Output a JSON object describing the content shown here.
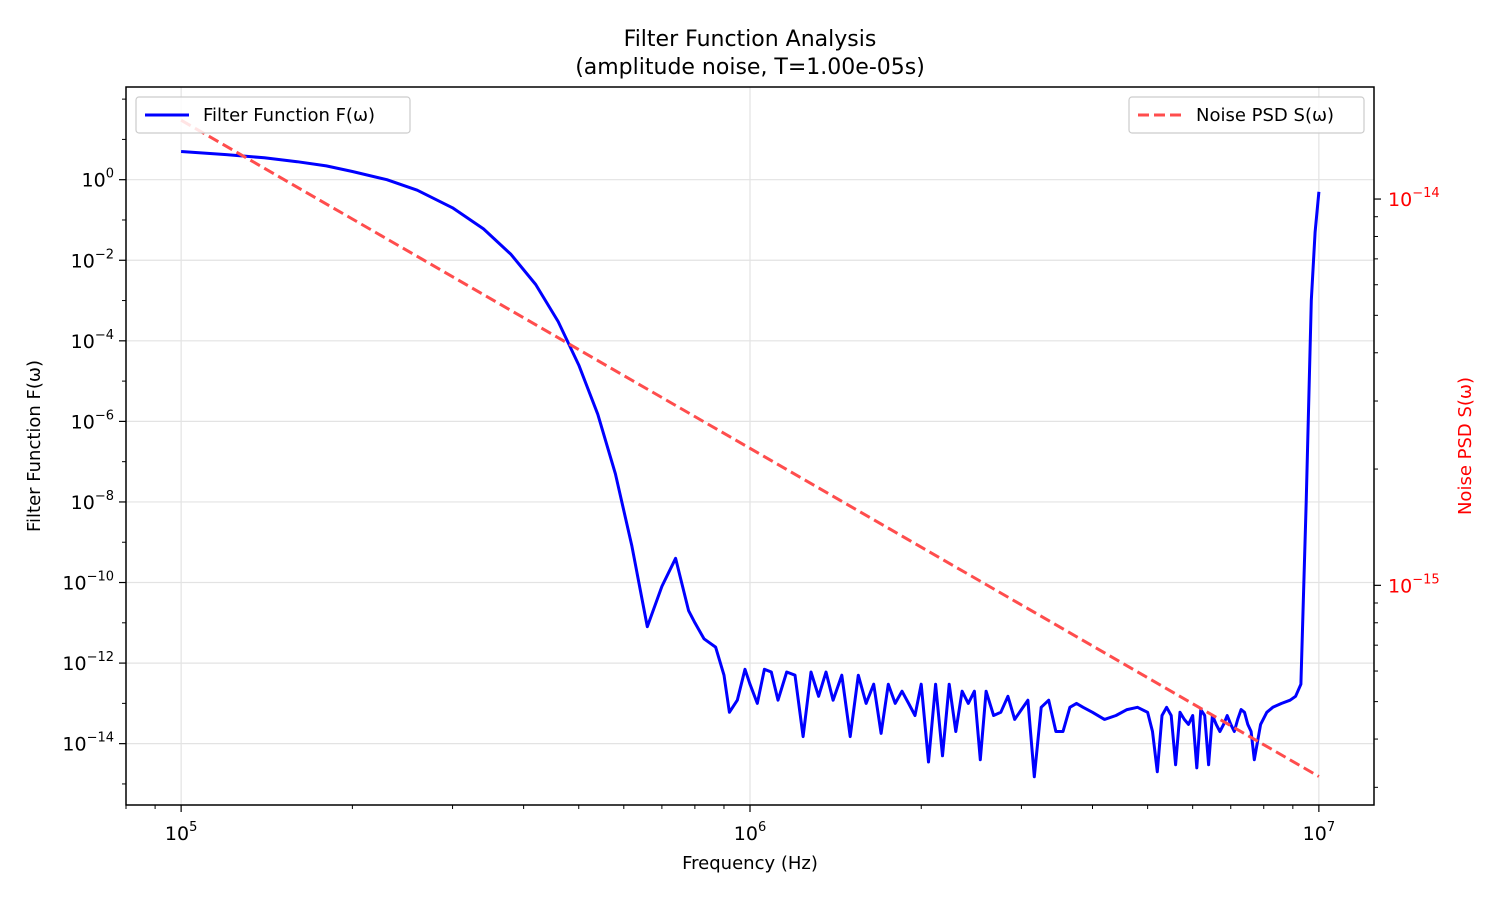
{
  "chart_data": {
    "type": "line",
    "title": "Filter Function Analysis",
    "subtitle": "(amplitude noise, T=1.00e-05s)",
    "xlabel": "Frequency (Hz)",
    "ylabel": "Filter Function F(ω)",
    "y2label": "Noise PSD S(ω)",
    "x_scale": "log",
    "y_scale": "log",
    "y2_scale": "log",
    "xlim": [
      80000,
      12500000
    ],
    "ylim": [
      3e-16,
      200
    ],
    "y2lim": [
      2.7e-16,
      1.95e-14
    ],
    "grid": true,
    "x_ticks": [
      {
        "base": "10",
        "exp": "5",
        "value": 100000
      },
      {
        "base": "10",
        "exp": "6",
        "value": 1000000
      },
      {
        "base": "10",
        "exp": "7",
        "value": 10000000
      }
    ],
    "y_ticks": [
      {
        "base": "10",
        "exp": "0",
        "value": 1
      },
      {
        "base": "10",
        "exp": "−2",
        "value": 0.01
      },
      {
        "base": "10",
        "exp": "−4",
        "value": 0.0001
      },
      {
        "base": "10",
        "exp": "−6",
        "value": 1e-06
      },
      {
        "base": "10",
        "exp": "−8",
        "value": 1e-08
      },
      {
        "base": "10",
        "exp": "−10",
        "value": 1e-10
      },
      {
        "base": "10",
        "exp": "−12",
        "value": 1e-12
      },
      {
        "base": "10",
        "exp": "−14",
        "value": 1e-14
      }
    ],
    "y2_ticks": [
      {
        "base": "10",
        "exp": "−14",
        "value": 1e-14
      },
      {
        "base": "10",
        "exp": "−15",
        "value": 1e-15
      }
    ],
    "legend": [
      {
        "label": "Filter Function F(ω)",
        "placement": "upper-left"
      },
      {
        "label": "Noise PSD S(ω)",
        "placement": "upper-right"
      }
    ],
    "series": [
      {
        "name": "Filter Function F(ω)",
        "color": "#0000ff",
        "style": "solid",
        "axis": "left",
        "x": [
          100000,
          120000,
          140000,
          160000,
          180000,
          200000,
          230000,
          260000,
          300000,
          340000,
          380000,
          420000,
          460000,
          500000,
          540000,
          580000,
          620000,
          660000,
          700000,
          740000,
          780000,
          800000,
          830000,
          870000,
          900000,
          920000,
          950000,
          980000,
          1000000,
          1030000,
          1060000,
          1090000,
          1120000,
          1160000,
          1200000,
          1240000,
          1280000,
          1320000,
          1360000,
          1400000,
          1450000,
          1500000,
          1550000,
          1600000,
          1650000,
          1700000,
          1750000,
          1800000,
          1850000,
          1900000,
          1950000,
          2000000,
          2060000,
          2120000,
          2180000,
          2240000,
          2300000,
          2360000,
          2420000,
          2480000,
          2540000,
          2600000,
          2680000,
          2760000,
          2840000,
          2920000,
          3000000,
          3080000,
          3160000,
          3250000,
          3350000,
          3450000,
          3550000,
          3650000,
          3750000,
          3850000,
          4000000,
          4200000,
          4400000,
          4600000,
          4800000,
          5000000,
          5100000,
          5200000,
          5300000,
          5400000,
          5500000,
          5600000,
          5700000,
          5800000,
          5900000,
          6000000,
          6100000,
          6200000,
          6300000,
          6400000,
          6500000,
          6600000,
          6700000,
          6800000,
          6900000,
          7000000,
          7100000,
          7200000,
          7300000,
          7400000,
          7500000,
          7600000,
          7700000,
          7900000,
          8100000,
          8300000,
          8600000,
          8900000,
          9100000,
          9300000,
          9500000,
          9700000,
          9850000,
          10000000
        ],
        "values": [
          5,
          4.2,
          3.5,
          2.8,
          2.2,
          1.6,
          1.0,
          0.55,
          0.2,
          0.06,
          0.014,
          0.0025,
          0.0003,
          2.5e-05,
          1.5e-06,
          5e-08,
          8e-10,
          8e-12,
          8e-11,
          4e-10,
          2e-11,
          1e-11,
          4e-12,
          2.5e-12,
          5e-13,
          6e-14,
          1.2e-13,
          7e-13,
          3e-13,
          1e-13,
          7e-13,
          6e-13,
          1.2e-13,
          6e-13,
          5e-13,
          1.5e-14,
          6e-13,
          1.5e-13,
          6e-13,
          1.2e-13,
          5e-13,
          1.5e-14,
          5e-13,
          1e-13,
          3e-13,
          1.8e-14,
          3e-13,
          1e-13,
          2e-13,
          1e-13,
          5e-14,
          3e-13,
          3.5e-15,
          3e-13,
          5e-15,
          3e-13,
          2e-14,
          2e-13,
          1e-13,
          2e-13,
          4e-15,
          2e-13,
          5e-14,
          6e-14,
          1.5e-13,
          4e-14,
          7e-14,
          1.2e-13,
          1.5e-15,
          8e-14,
          1.2e-13,
          2e-14,
          2e-14,
          8e-14,
          1e-13,
          8e-14,
          6e-14,
          4e-14,
          5e-14,
          7e-14,
          8e-14,
          6e-14,
          2e-14,
          2e-15,
          5e-14,
          8e-14,
          5e-14,
          3e-15,
          6e-14,
          4e-14,
          3e-14,
          5e-14,
          2.5e-15,
          7e-14,
          5e-14,
          3e-15,
          5e-14,
          3e-14,
          2e-14,
          3e-14,
          5e-14,
          3e-14,
          2e-14,
          4e-14,
          7e-14,
          6e-14,
          3e-14,
          2e-14,
          4e-15,
          3e-14,
          6e-14,
          8e-14,
          1e-13,
          1.2e-13,
          1.5e-13,
          3e-13,
          1e-08,
          0.001,
          0.05,
          0.5
        ]
      },
      {
        "name": "Noise PSD S(ω)",
        "color": "#ff4d4d",
        "style": "dashed",
        "axis": "right",
        "x": [
          100000,
          10000000
        ],
        "values": [
          1.6e-14,
          3.2e-16
        ]
      }
    ]
  }
}
